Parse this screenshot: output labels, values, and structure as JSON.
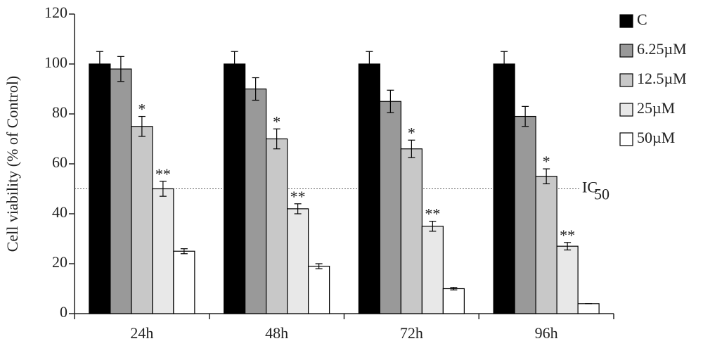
{
  "chart_data": {
    "type": "bar",
    "y_label": "Cell viability (% of Control)",
    "categories": [
      "24h",
      "48h",
      "72h",
      "96h"
    ],
    "series": [
      {
        "name": "C",
        "color": "#000000",
        "values": [
          100,
          100,
          100,
          100
        ],
        "errors": [
          5,
          5,
          5,
          5
        ]
      },
      {
        "name": "6.25µM",
        "color": "#999999",
        "values": [
          98,
          90,
          85,
          79
        ],
        "errors": [
          5,
          4.5,
          4.5,
          4
        ]
      },
      {
        "name": "12.5µM",
        "color": "#c8c8c8",
        "values": [
          75,
          70,
          66,
          55
        ],
        "errors": [
          4,
          4,
          3.5,
          3
        ],
        "significance": [
          "*",
          "*",
          "*",
          "*"
        ]
      },
      {
        "name": "25µM",
        "color": "#e8e8e8",
        "values": [
          50,
          42,
          35,
          27
        ],
        "errors": [
          3,
          2,
          2,
          1.5
        ],
        "significance": [
          "**",
          "**",
          "**",
          "**"
        ]
      },
      {
        "name": "50µM",
        "color": "#ffffff",
        "values": [
          25,
          19,
          10,
          4
        ],
        "errors": [
          1,
          1,
          0.5,
          0
        ]
      }
    ],
    "ylim": [
      0,
      120
    ],
    "yticks": [
      0,
      20,
      40,
      60,
      80,
      100,
      120
    ],
    "reference_line": {
      "value": 50,
      "label": "IC",
      "subscript": "50"
    },
    "legend": "top-right"
  }
}
